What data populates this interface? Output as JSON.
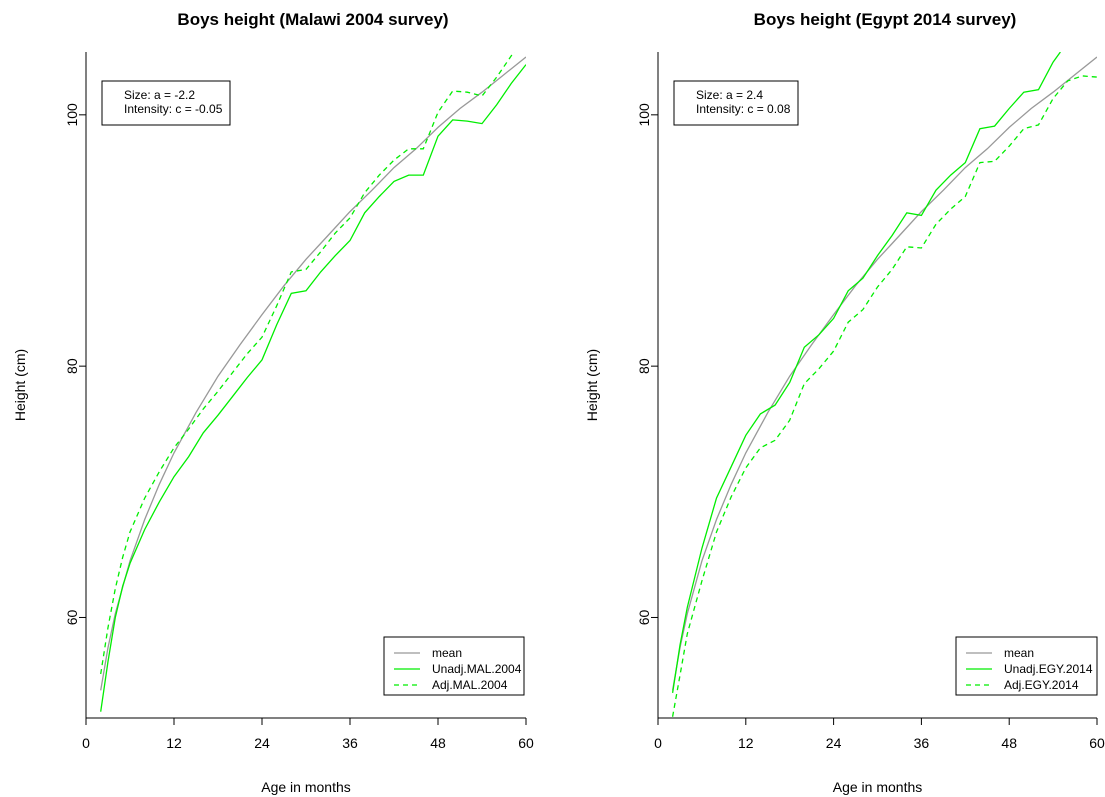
{
  "colors": {
    "mean": "#999999",
    "green": "#00ee00"
  },
  "chart_data": [
    {
      "type": "line",
      "title": "Boys height (Malawi 2004 survey)",
      "xlabel": "Age in months",
      "ylabel": "Height (cm)",
      "xlim": [
        0,
        60
      ],
      "ylim": [
        52,
        105
      ],
      "xticks": [
        0,
        12,
        24,
        36,
        48,
        60
      ],
      "yticks": [
        60,
        80,
        100
      ],
      "grid": false,
      "legend_position": "bottom-right",
      "annotation": [
        "Size: a = -2.2",
        "Intensity: c = -0.05"
      ],
      "series": [
        {
          "name": "mean",
          "style": "solid",
          "color": "#999999",
          "x": [
            2,
            3,
            4,
            6,
            8,
            10,
            12,
            15,
            18,
            21,
            24,
            27,
            30,
            33,
            36,
            39,
            42,
            45,
            48,
            51,
            54,
            57,
            60
          ],
          "y": [
            54.2,
            57.6,
            60.3,
            64.5,
            67.8,
            70.6,
            73.1,
            76.3,
            79.2,
            81.7,
            84.1,
            86.4,
            88.5,
            90.4,
            92.3,
            94.0,
            95.8,
            97.3,
            99.0,
            100.5,
            101.8,
            103.2,
            104.6
          ]
        },
        {
          "name": "Unadj.MAL.2004",
          "style": "solid",
          "color": "#00ee00",
          "x": [
            2,
            3,
            4,
            5,
            6,
            8,
            10,
            12,
            14,
            16,
            18,
            20,
            22,
            24,
            26,
            28,
            30,
            32,
            34,
            36,
            38,
            40,
            42,
            44,
            46,
            48,
            50,
            52,
            54,
            56,
            58,
            60
          ],
          "y": [
            52.5,
            56.5,
            60.0,
            62.5,
            64.3,
            67.0,
            69.2,
            71.2,
            72.8,
            74.7,
            76.1,
            77.6,
            79.1,
            80.5,
            83.3,
            85.8,
            86.0,
            87.5,
            88.8,
            90.0,
            92.2,
            93.5,
            94.7,
            95.2,
            95.2,
            98.3,
            99.6,
            99.5,
            99.3,
            100.8,
            102.5,
            104.0
          ]
        },
        {
          "name": "Adj.MAL.2004",
          "style": "dashed",
          "color": "#00ee00",
          "x": [
            2,
            3,
            4,
            5,
            6,
            8,
            10,
            12,
            14,
            16,
            18,
            20,
            22,
            24,
            26,
            28,
            30,
            32,
            34,
            36,
            38,
            40,
            42,
            44,
            46,
            48,
            50,
            52,
            54,
            56,
            58,
            60
          ],
          "y": [
            55.5,
            59.2,
            62.3,
            64.8,
            66.8,
            69.5,
            71.6,
            73.5,
            75.0,
            76.6,
            78.0,
            79.5,
            81.0,
            82.3,
            84.8,
            87.5,
            87.7,
            89.1,
            90.6,
            91.8,
            93.8,
            95.2,
            96.4,
            97.3,
            97.3,
            100.2,
            101.9,
            101.8,
            101.5,
            103.0,
            104.7,
            106.3
          ]
        }
      ]
    },
    {
      "type": "line",
      "title": "Boys height (Egypt 2014 survey)",
      "xlabel": "Age in months",
      "ylabel": "Height (cm)",
      "xlim": [
        0,
        60
      ],
      "ylim": [
        52,
        105
      ],
      "xticks": [
        0,
        12,
        24,
        36,
        48,
        60
      ],
      "yticks": [
        60,
        80,
        100
      ],
      "grid": false,
      "legend_position": "bottom-right",
      "annotation": [
        "Size: a = 2.4",
        "Intensity: c = 0.08"
      ],
      "series": [
        {
          "name": "mean",
          "style": "solid",
          "color": "#999999",
          "x": [
            2,
            3,
            4,
            6,
            8,
            10,
            12,
            15,
            18,
            21,
            24,
            27,
            30,
            33,
            36,
            39,
            42,
            45,
            48,
            51,
            54,
            57,
            60
          ],
          "y": [
            54.2,
            57.6,
            60.3,
            64.5,
            67.8,
            70.6,
            73.1,
            76.3,
            79.2,
            81.7,
            84.1,
            86.4,
            88.5,
            90.4,
            92.3,
            94.0,
            95.8,
            97.3,
            99.0,
            100.5,
            101.8,
            103.2,
            104.6
          ]
        },
        {
          "name": "Unadj.EGY.2014",
          "style": "solid",
          "color": "#00ee00",
          "x": [
            2,
            3,
            4,
            6,
            8,
            10,
            12,
            14,
            16,
            18,
            20,
            22,
            24,
            26,
            28,
            30,
            32,
            34,
            36,
            38,
            40,
            42,
            44,
            46,
            48,
            50,
            52,
            54,
            55
          ],
          "y": [
            54.0,
            57.8,
            60.8,
            65.5,
            69.5,
            72.0,
            74.5,
            76.2,
            76.9,
            78.7,
            81.5,
            82.5,
            83.8,
            86.0,
            87.0,
            88.8,
            90.4,
            92.2,
            92.0,
            94.0,
            95.2,
            96.2,
            98.9,
            99.1,
            100.5,
            101.8,
            102.0,
            104.2,
            105.0
          ]
        },
        {
          "name": "Adj.EGY.2014",
          "style": "dashed",
          "color": "#00ee00",
          "x": [
            2,
            3,
            4,
            6,
            8,
            10,
            12,
            14,
            16,
            18,
            20,
            22,
            24,
            26,
            28,
            30,
            32,
            34,
            36,
            38,
            40,
            42,
            44,
            46,
            48,
            50,
            52,
            54,
            56,
            58,
            60
          ],
          "y": [
            52.1,
            55.4,
            58.7,
            62.9,
            66.8,
            69.6,
            71.9,
            73.5,
            74.1,
            75.7,
            78.6,
            79.8,
            81.2,
            83.5,
            84.5,
            86.3,
            87.7,
            89.5,
            89.4,
            91.3,
            92.5,
            93.5,
            96.2,
            96.3,
            97.5,
            98.9,
            99.2,
            101.3,
            102.7,
            103.1,
            103.0
          ]
        }
      ]
    }
  ]
}
